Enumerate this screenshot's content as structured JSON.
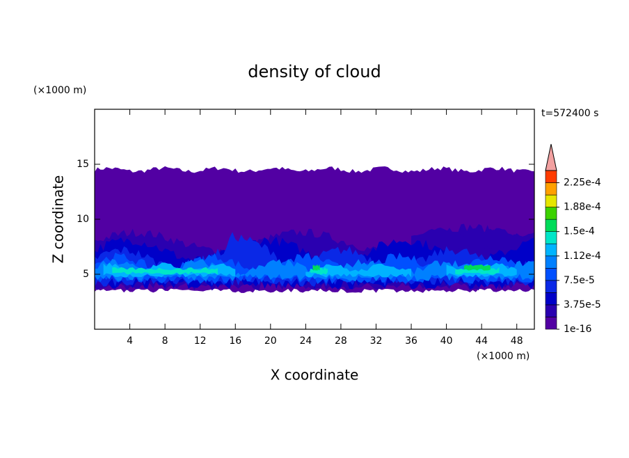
{
  "chart_data": {
    "type": "contour",
    "title": "density of cloud",
    "time_label": "t=572400 s",
    "xlabel": "X coordinate",
    "ylabel": "Z coordinate",
    "x_unit": "(×1000 m)",
    "y_unit": "(×1000 m)",
    "xlim": [
      0,
      50
    ],
    "ylim": [
      0,
      20
    ],
    "xticks": [
      4,
      8,
      12,
      16,
      20,
      24,
      28,
      32,
      36,
      40,
      44,
      48
    ],
    "yticks": [
      5,
      10,
      15
    ],
    "levels": [
      1e-16,
      1.875e-05,
      3.75e-05,
      5.625e-05,
      7.5e-05,
      9.375e-05,
      0.0001125,
      0.00013125,
      0.00015,
      0.00016875,
      0.0001875,
      0.00020625,
      0.000225,
      0.00024375
    ],
    "colors": [
      "#5200a3",
      "#2a00b0",
      "#0000c8",
      "#0a28e6",
      "#0050ff",
      "#0080ff",
      "#00b4ff",
      "#00e6c8",
      "#00dc5a",
      "#3cd200",
      "#e6e600",
      "#ffa000",
      "#ff3c00"
    ],
    "overflow_color": "#f2a0a0",
    "level_ticks": [
      1e-16,
      {
        "value": 3.75e-05,
        "label": "3.75e-5"
      },
      {
        "value": 7.5e-05,
        "label": "7.5e-5"
      },
      {
        "value": 0.0001125,
        "label": "1.12e-4"
      },
      {
        "value": 0.00015,
        "label": "1.5e-4"
      },
      {
        "value": 0.0001875,
        "label": "1.88e-4"
      },
      {
        "value": 0.000225,
        "label": "2.25e-4"
      }
    ]
  }
}
